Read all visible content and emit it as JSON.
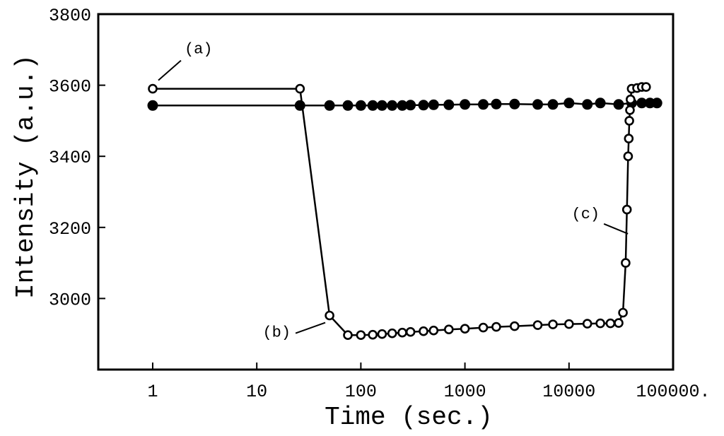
{
  "chart_data": {
    "type": "scatter",
    "xlabel": "Time (sec.)",
    "ylabel": "Intensity (a.u.)",
    "xscale": "log",
    "xlim": [
      0.3,
      100000
    ],
    "ylim": [
      2800,
      3800
    ],
    "grid": false,
    "xticks": [
      {
        "value": 1,
        "label": "1"
      },
      {
        "value": 10,
        "label": "10"
      },
      {
        "value": 100,
        "label": "100"
      },
      {
        "value": 1000,
        "label": "1000"
      },
      {
        "value": 10000,
        "label": "10000"
      },
      {
        "value": 100000,
        "label": "100000."
      }
    ],
    "yticks": [
      {
        "value": 3000,
        "label": "3000"
      },
      {
        "value": 3200,
        "label": "3200"
      },
      {
        "value": 3400,
        "label": "3400"
      },
      {
        "value": 3600,
        "label": "3600"
      },
      {
        "value": 3800,
        "label": "3800"
      }
    ],
    "annotations": [
      {
        "text": "(a)",
        "x": 1,
        "y": 3590
      },
      {
        "text": "(b)",
        "x": 50,
        "y": 2952
      },
      {
        "text": "(c)",
        "x": 38000,
        "y": 3190
      }
    ],
    "series": [
      {
        "marker": "filled-circle",
        "color": "#000000",
        "x": [
          1,
          26,
          50,
          75,
          100,
          130,
          160,
          200,
          250,
          300,
          400,
          500,
          700,
          1000,
          1500,
          2000,
          3000,
          5000,
          7000,
          10000,
          15000,
          20000,
          30000,
          40000,
          50000,
          60000,
          70000
        ],
        "y": [
          3543,
          3543,
          3543,
          3543,
          3543,
          3543,
          3543,
          3543,
          3543,
          3544,
          3544,
          3545,
          3545,
          3546,
          3546,
          3547,
          3547,
          3546,
          3546,
          3550,
          3546,
          3550,
          3546,
          3550,
          3550,
          3550,
          3550
        ]
      },
      {
        "marker": "open-circle",
        "color": "#000000",
        "x": [
          1,
          26,
          50,
          75,
          100,
          130,
          160,
          200,
          250,
          300,
          400,
          500,
          700,
          1000,
          1500,
          2000,
          3000,
          5000,
          7000,
          10000,
          15000,
          20000,
          25000,
          30000,
          33000,
          35000,
          36000,
          37000,
          37500,
          38000,
          38500,
          39000,
          40000,
          45000,
          50000,
          55000
        ],
        "y": [
          3590,
          3590,
          2952,
          2897,
          2897,
          2898,
          2900,
          2902,
          2904,
          2906,
          2908,
          2910,
          2913,
          2915,
          2918,
          2920,
          2922,
          2925,
          2927,
          2928,
          2929,
          2930,
          2930,
          2931,
          2960,
          3100,
          3250,
          3400,
          3450,
          3500,
          3530,
          3560,
          3590,
          3592,
          3595,
          3595
        ]
      }
    ]
  }
}
